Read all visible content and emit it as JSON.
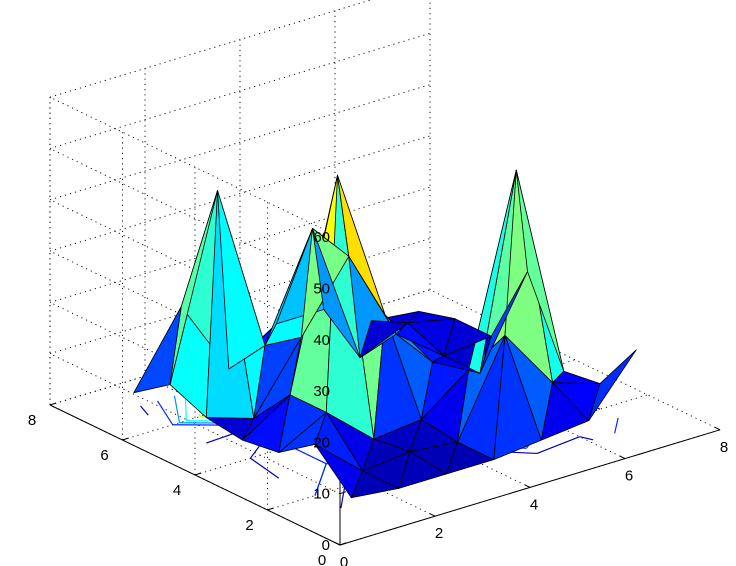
{
  "chart_data": {
    "type": "surface3d",
    "title": "",
    "xlabel": "",
    "ylabel": "",
    "zlabel": "",
    "xlim": [
      0,
      8
    ],
    "ylim": [
      0,
      8
    ],
    "zlim": [
      0,
      60
    ],
    "x_ticks": [
      "0",
      "2",
      "4",
      "6",
      "8"
    ],
    "y_ticks": [
      "0",
      "2",
      "4",
      "6",
      "8"
    ],
    "z_ticks": [
      "0",
      "10",
      "20",
      "30",
      "40",
      "50",
      "60"
    ],
    "grid": true,
    "colormap": "jet",
    "contour_on_base": true,
    "x": [
      1,
      2,
      3,
      4,
      5,
      6,
      7
    ],
    "y": [
      1,
      2,
      3,
      4,
      5,
      6,
      7
    ],
    "z": [
      [
        3,
        2,
        2,
        2,
        3,
        4,
        15
      ],
      [
        10,
        2,
        3,
        2,
        20,
        8,
        5
      ],
      [
        5,
        10,
        2,
        3,
        10,
        46,
        4
      ],
      [
        4,
        10,
        50,
        20,
        8,
        3,
        20
      ],
      [
        5,
        2,
        15,
        28,
        10,
        3,
        4
      ],
      [
        8,
        43,
        10,
        30,
        2,
        6,
        4
      ],
      [
        3,
        17,
        2,
        8,
        8,
        3,
        2
      ]
    ]
  }
}
